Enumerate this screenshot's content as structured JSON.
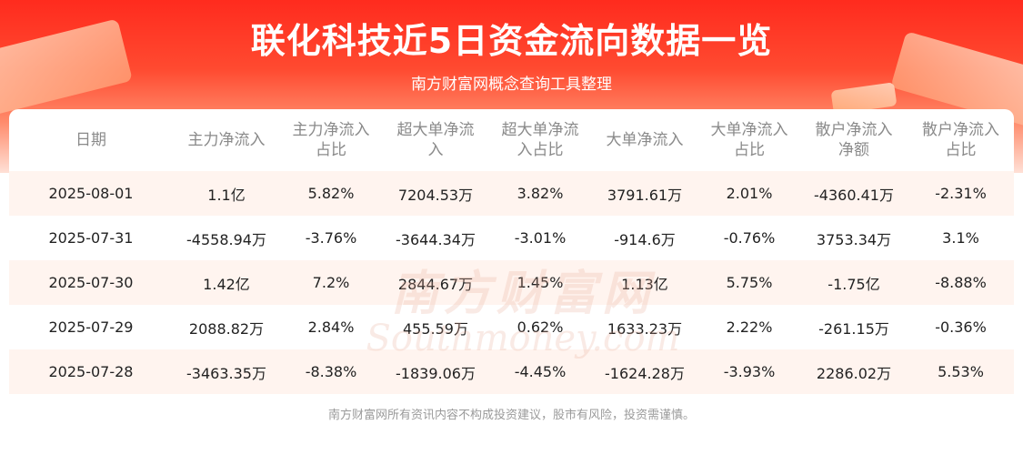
{
  "header": {
    "title": "联化科技近5日资金流向数据一览",
    "subtitle": "南方财富网概念查询工具整理"
  },
  "table": {
    "headers": [
      {
        "line1": "日期",
        "line2": ""
      },
      {
        "line1": "主力净流入",
        "line2": ""
      },
      {
        "line1": "主力净流入",
        "line2": "占比"
      },
      {
        "line1": "超大单净流",
        "line2": "入"
      },
      {
        "line1": "超大单净流",
        "line2": "入占比"
      },
      {
        "line1": "大单净流入",
        "line2": ""
      },
      {
        "line1": "大单净流入",
        "line2": "占比"
      },
      {
        "line1": "散户净流入",
        "line2": "净额"
      },
      {
        "line1": "散户净流入",
        "line2": "占比"
      }
    ],
    "rows": [
      [
        "2025-08-01",
        "1.1亿",
        "5.82%",
        "7204.53万",
        "3.82%",
        "3791.61万",
        "2.01%",
        "-4360.41万",
        "-2.31%"
      ],
      [
        "2025-07-31",
        "-4558.94万",
        "-3.76%",
        "-3644.34万",
        "-3.01%",
        "-914.6万",
        "-0.76%",
        "3753.34万",
        "3.1%"
      ],
      [
        "2025-07-30",
        "1.42亿",
        "7.2%",
        "2844.67万",
        "1.45%",
        "1.13亿",
        "5.75%",
        "-1.75亿",
        "-8.88%"
      ],
      [
        "2025-07-29",
        "2088.82万",
        "2.84%",
        "455.59万",
        "0.62%",
        "1633.23万",
        "2.22%",
        "-261.15万",
        "-0.36%"
      ],
      [
        "2025-07-28",
        "-3463.35万",
        "-8.38%",
        "-1839.06万",
        "-4.45%",
        "-1624.28万",
        "-3.93%",
        "2286.02万",
        "5.53%"
      ]
    ]
  },
  "watermark": {
    "cn": "南方财富网",
    "en": "Southmoney.com"
  },
  "footer": {
    "disclaimer": "南方财富网所有资讯内容不构成投资建议，股市有风险，投资需谨慎。"
  }
}
